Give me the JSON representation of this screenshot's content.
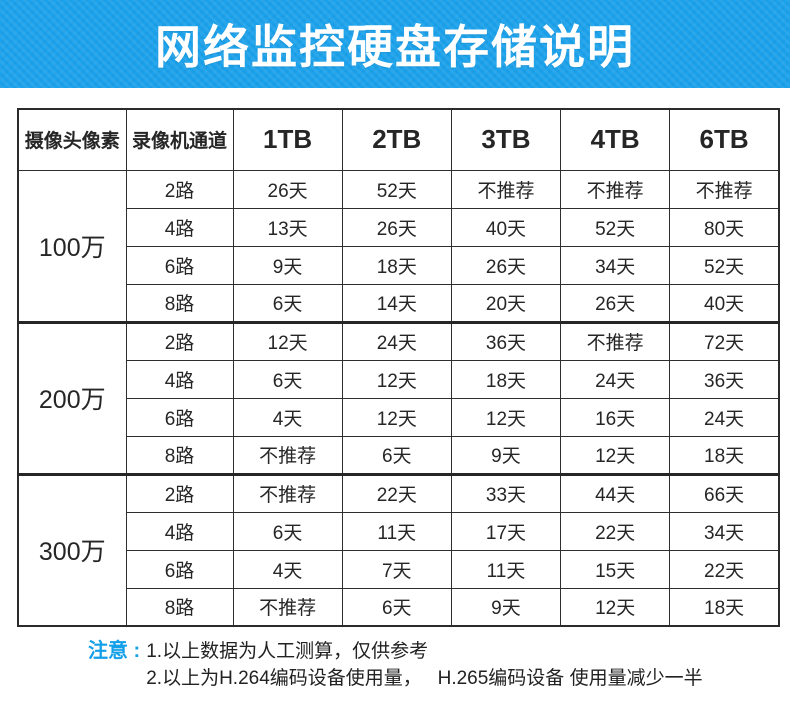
{
  "title": "网络监控硬盘存储说明",
  "table": {
    "col_headers": [
      "摄像头像素",
      "录像机通道",
      "1TB",
      "2TB",
      "3TB",
      "4TB",
      "6TB"
    ],
    "groups": [
      {
        "pixel": "100万",
        "rows": [
          {
            "channel": "2路",
            "values": [
              "26天",
              "52天",
              "不推荐",
              "不推荐",
              "不推荐"
            ]
          },
          {
            "channel": "4路",
            "values": [
              "13天",
              "26天",
              "40天",
              "52天",
              "80天"
            ]
          },
          {
            "channel": "6路",
            "values": [
              "9天",
              "18天",
              "26天",
              "34天",
              "52天"
            ]
          },
          {
            "channel": "8路",
            "values": [
              "6天",
              "14天",
              "20天",
              "26天",
              "40天"
            ]
          }
        ]
      },
      {
        "pixel": "200万",
        "rows": [
          {
            "channel": "2路",
            "values": [
              "12天",
              "24天",
              "36天",
              "不推荐",
              "72天"
            ]
          },
          {
            "channel": "4路",
            "values": [
              "6天",
              "12天",
              "18天",
              "24天",
              "36天"
            ]
          },
          {
            "channel": "6路",
            "values": [
              "4天",
              "12天",
              "12天",
              "16天",
              "24天"
            ]
          },
          {
            "channel": "8路",
            "values": [
              "不推荐",
              "6天",
              "9天",
              "12天",
              "18天"
            ]
          }
        ]
      },
      {
        "pixel": "300万",
        "rows": [
          {
            "channel": "2路",
            "values": [
              "不推荐",
              "22天",
              "33天",
              "44天",
              "66天"
            ]
          },
          {
            "channel": "4路",
            "values": [
              "6天",
              "11天",
              "17天",
              "22天",
              "34天"
            ]
          },
          {
            "channel": "6路",
            "values": [
              "4天",
              "7天",
              "11天",
              "15天",
              "22天"
            ]
          },
          {
            "channel": "8路",
            "values": [
              "不推荐",
              "6天",
              "9天",
              "12天",
              "18天"
            ]
          }
        ]
      }
    ]
  },
  "notes": {
    "label": "注意 :",
    "items": [
      "1.以上数据为人工测算，仅供参考",
      "2.以上为H.264编码设备使用量，   H.265编码设备 使用量减少一半"
    ]
  },
  "colors": {
    "banner_blue": "#1ba2ec",
    "note_blue": "#149fe9",
    "border": "#2b2b2b",
    "text": "#262626"
  }
}
